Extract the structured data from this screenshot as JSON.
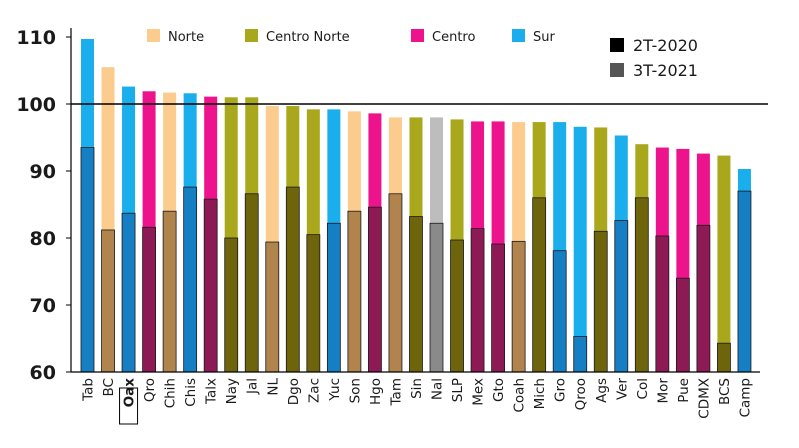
{
  "chart_data": {
    "type": "bar",
    "ylim": [
      60,
      112
    ],
    "yticks": [
      60,
      70,
      80,
      90,
      100,
      110
    ],
    "reference_line": 100,
    "highlighted_category": "Oax",
    "region_legend": [
      {
        "key": "norte",
        "label": "Norte",
        "color": "#FCCB8E"
      },
      {
        "key": "centro_norte",
        "label": "Centro Norte",
        "color": "#A9A71B"
      },
      {
        "key": "centro",
        "label": "Centro",
        "color": "#EC138C"
      },
      {
        "key": "sur",
        "label": "Sur",
        "color": "#1AAEEC"
      }
    ],
    "period_legend": [
      {
        "label": "2T-2020",
        "color": "#000000"
      },
      {
        "label": "3T-2021",
        "color": "#555555"
      }
    ],
    "series": [
      {
        "name": "2T-2020",
        "role": "lower"
      },
      {
        "name": "3T-2021",
        "role": "upper"
      }
    ],
    "categories": [
      "Tab",
      "BC",
      "Oax",
      "Qro",
      "Chih",
      "Chis",
      "Talx",
      "Nay",
      "Jal",
      "NL",
      "Dgo",
      "Zac",
      "Yuc",
      "Son",
      "Hgo",
      "Tam",
      "Sin",
      "Nal",
      "SLP",
      "Mex",
      "Gto",
      "Coah",
      "Mich",
      "Gro",
      "Qroo",
      "Ags",
      "Ver",
      "Col",
      "Mor",
      "Pue",
      "CDMX",
      "BCS",
      "Camp"
    ],
    "regions": [
      "sur",
      "norte",
      "sur",
      "centro",
      "norte",
      "sur",
      "centro",
      "centro_norte",
      "centro_norte",
      "norte",
      "centro_norte",
      "centro_norte",
      "sur",
      "norte",
      "centro",
      "norte",
      "centro_norte",
      "other",
      "centro_norte",
      "centro",
      "centro",
      "norte",
      "centro_norte",
      "sur",
      "sur",
      "centro_norte",
      "sur",
      "centro_norte",
      "centro",
      "centro",
      "centro",
      "centro_norte",
      "sur"
    ],
    "values_2T_2020": [
      93.5,
      81.2,
      83.7,
      81.6,
      84.0,
      87.6,
      85.8,
      80.0,
      86.6,
      79.4,
      87.6,
      80.5,
      82.2,
      84.0,
      84.6,
      86.6,
      83.2,
      82.2,
      79.7,
      81.4,
      79.1,
      79.5,
      86.0,
      78.1,
      65.3,
      81.0,
      82.6,
      86.0,
      80.3,
      74.0,
      81.9,
      64.3,
      87.0
    ],
    "values_3T_2021": [
      109.7,
      105.5,
      102.6,
      101.9,
      101.7,
      101.6,
      101.1,
      101.0,
      101.0,
      99.7,
      99.7,
      99.2,
      99.2,
      98.9,
      98.6,
      98.0,
      98.0,
      98.0,
      97.7,
      97.4,
      97.4,
      97.3,
      97.3,
      97.3,
      96.6,
      96.5,
      95.3,
      94.0,
      93.5,
      93.3,
      92.6,
      92.3,
      90.3
    ]
  }
}
